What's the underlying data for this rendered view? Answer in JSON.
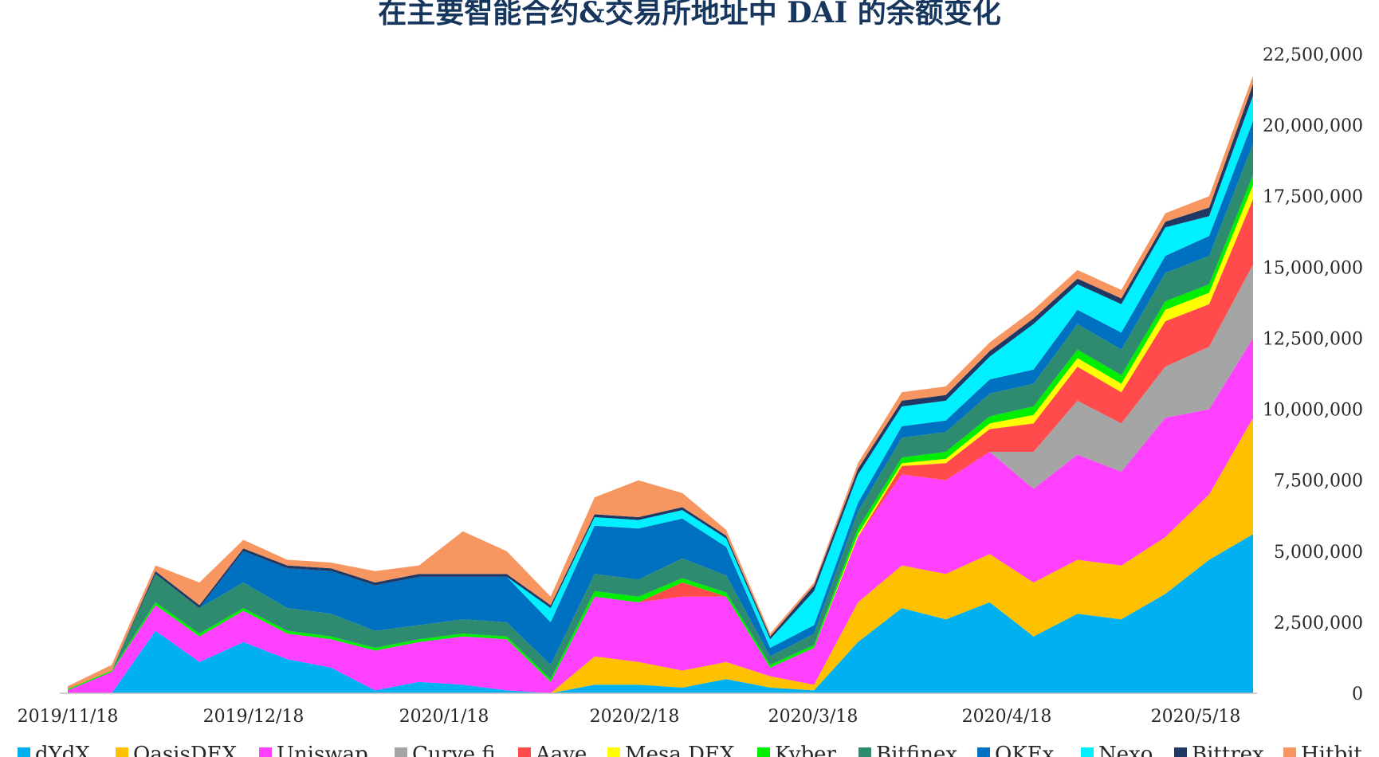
{
  "chart_data": {
    "type": "area",
    "stacked": true,
    "title": "在主要智能合约&交易所地址中 DAI 的余额变化",
    "xlabel": "",
    "ylabel": "",
    "y_axis_side": "right",
    "ylim": [
      0,
      22500000
    ],
    "y_ticks": [
      0,
      2500000,
      5000000,
      7500000,
      10000000,
      12500000,
      15000000,
      17500000,
      20000000,
      22500000
    ],
    "y_tick_labels": [
      "0",
      "2,500,000",
      "5,000,000",
      "7,500,000",
      "10,000,000",
      "12,500,000",
      "15,000,000",
      "17,500,000",
      "20,000,000",
      "22,500,000"
    ],
    "x_tick_labels": [
      "2019/11/18",
      "2019/12/18",
      "2020/1/18",
      "2020/2/18",
      "2020/3/18",
      "2020/4/18",
      "2020/5/18"
    ],
    "x": [
      "2019/11/18",
      "2019/11/25",
      "2019/12/2",
      "2019/12/9",
      "2019/12/16",
      "2019/12/23",
      "2019/12/30",
      "2020/1/6",
      "2020/1/13",
      "2020/1/20",
      "2020/1/27",
      "2020/2/3",
      "2020/2/10",
      "2020/2/17",
      "2020/2/24",
      "2020/3/2",
      "2020/3/9",
      "2020/3/16",
      "2020/3/23",
      "2020/3/30",
      "2020/4/6",
      "2020/4/13",
      "2020/4/20",
      "2020/4/27",
      "2020/5/4",
      "2020/5/11",
      "2020/5/18",
      "2020/5/25"
    ],
    "grid": false,
    "legend_position": "bottom",
    "series": [
      {
        "name": "dYdX",
        "color": "#00b0f0",
        "values": [
          0,
          0,
          2200000,
          1100000,
          1800000,
          1200000,
          900000,
          100000,
          400000,
          300000,
          100000,
          0,
          300000,
          300000,
          200000,
          500000,
          200000,
          100000,
          1800000,
          3000000,
          2600000,
          3200000,
          2000000,
          2800000,
          2600000,
          3500000,
          4700000,
          5600000
        ]
      },
      {
        "name": "OasisDEX",
        "color": "#ffc000",
        "values": [
          0,
          0,
          0,
          0,
          0,
          0,
          0,
          0,
          0,
          0,
          0,
          0,
          1000000,
          800000,
          600000,
          600000,
          400000,
          200000,
          1400000,
          1500000,
          1600000,
          1700000,
          1900000,
          1900000,
          1900000,
          2000000,
          2300000,
          4100000
        ]
      },
      {
        "name": "Uniswap",
        "color": "#ff40ff",
        "values": [
          100000,
          750000,
          900000,
          900000,
          1100000,
          900000,
          1000000,
          1400000,
          1400000,
          1700000,
          1800000,
          400000,
          2100000,
          2100000,
          2600000,
          2300000,
          300000,
          1300000,
          2300000,
          3200000,
          3300000,
          3600000,
          3300000,
          3700000,
          3300000,
          4200000,
          3000000,
          2800000
        ]
      },
      {
        "name": "Curve.fi",
        "color": "#a5a5a5",
        "values": [
          0,
          0,
          0,
          0,
          0,
          0,
          0,
          0,
          0,
          0,
          0,
          0,
          0,
          0,
          0,
          0,
          0,
          0,
          0,
          0,
          0,
          0,
          1300000,
          1900000,
          1700000,
          1800000,
          2200000,
          2600000
        ]
      },
      {
        "name": "Aave",
        "color": "#ff4b4b",
        "values": [
          0,
          0,
          0,
          0,
          0,
          0,
          0,
          0,
          0,
          0,
          0,
          0,
          0,
          0,
          500000,
          0,
          0,
          0,
          0,
          300000,
          600000,
          800000,
          1000000,
          1200000,
          1100000,
          1600000,
          1500000,
          2300000
        ]
      },
      {
        "name": "Mesa DEX",
        "color": "#ffff00",
        "values": [
          0,
          0,
          0,
          0,
          0,
          0,
          0,
          0,
          0,
          0,
          0,
          0,
          0,
          0,
          0,
          0,
          0,
          0,
          100000,
          100000,
          150000,
          200000,
          300000,
          300000,
          300000,
          400000,
          400000,
          500000
        ]
      },
      {
        "name": "Kyber",
        "color": "#00ee00",
        "values": [
          50000,
          50000,
          100000,
          100000,
          100000,
          100000,
          100000,
          100000,
          100000,
          100000,
          100000,
          100000,
          200000,
          200000,
          150000,
          150000,
          100000,
          100000,
          200000,
          200000,
          250000,
          250000,
          300000,
          300000,
          300000,
          300000,
          300000,
          350000
        ]
      },
      {
        "name": "Bitfinex",
        "color": "#2e8b70",
        "values": [
          0,
          0,
          1000000,
          900000,
          900000,
          800000,
          800000,
          600000,
          500000,
          500000,
          500000,
          500000,
          600000,
          600000,
          700000,
          600000,
          300000,
          400000,
          600000,
          700000,
          700000,
          800000,
          800000,
          900000,
          900000,
          1000000,
          1000000,
          1100000
        ]
      },
      {
        "name": "OKEx",
        "color": "#0070c0",
        "values": [
          0,
          0,
          0,
          0,
          1100000,
          1400000,
          1500000,
          1600000,
          1700000,
          1500000,
          1600000,
          1500000,
          1700000,
          1800000,
          1400000,
          1000000,
          300000,
          300000,
          300000,
          400000,
          400000,
          500000,
          500000,
          500000,
          600000,
          600000,
          700000,
          800000
        ]
      },
      {
        "name": "Nexo",
        "color": "#00f0ff",
        "values": [
          0,
          0,
          0,
          0,
          0,
          0,
          0,
          0,
          0,
          0,
          0,
          500000,
          300000,
          300000,
          300000,
          300000,
          300000,
          1200000,
          1000000,
          700000,
          700000,
          800000,
          1600000,
          900000,
          1000000,
          1000000,
          700000,
          900000
        ]
      },
      {
        "name": "Bittrex",
        "color": "#1f3864",
        "values": [
          0,
          0,
          100000,
          100000,
          100000,
          100000,
          100000,
          100000,
          100000,
          100000,
          100000,
          100000,
          100000,
          100000,
          100000,
          100000,
          100000,
          200000,
          200000,
          200000,
          200000,
          200000,
          200000,
          200000,
          200000,
          200000,
          300000,
          400000
        ]
      },
      {
        "name": "Hitbit",
        "color": "#f79661",
        "values": [
          100000,
          200000,
          200000,
          800000,
          300000,
          200000,
          200000,
          400000,
          300000,
          1500000,
          800000,
          300000,
          600000,
          1300000,
          500000,
          200000,
          100000,
          100000,
          200000,
          300000,
          300000,
          300000,
          300000,
          300000,
          300000,
          300000,
          400000,
          300000
        ]
      }
    ]
  }
}
